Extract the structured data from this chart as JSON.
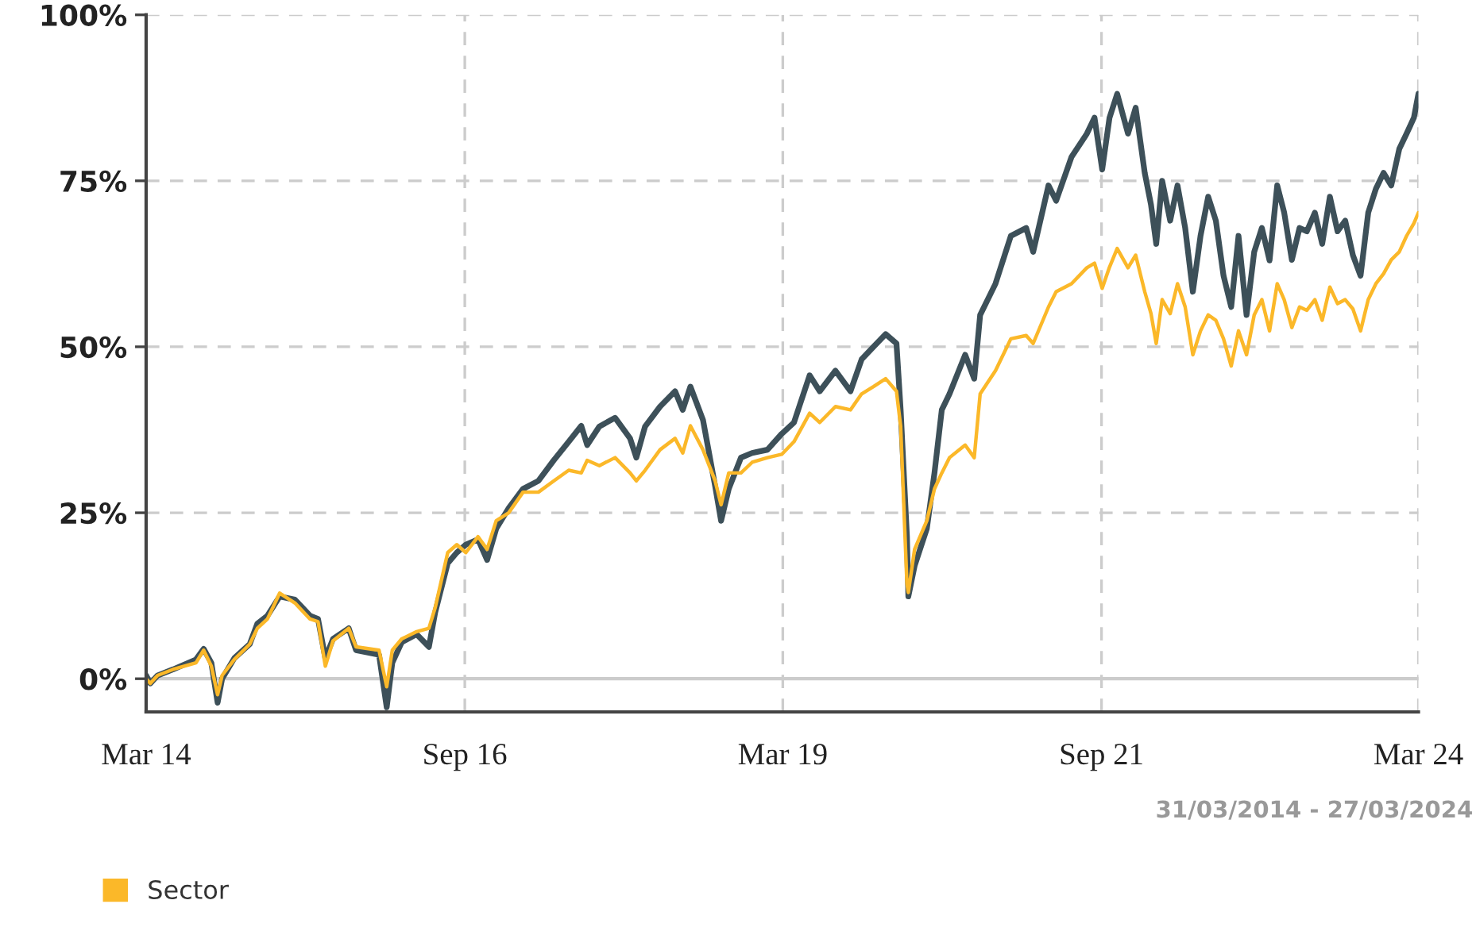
{
  "chart_data": {
    "type": "line",
    "x": [
      "2014-03-31",
      "2014-04-12",
      "2014-05-03",
      "2014-06-16",
      "2014-08-21",
      "2014-09-12",
      "2014-10-04",
      "2014-10-22",
      "2014-11-04",
      "2014-12-09",
      "2015-01-22",
      "2015-02-13",
      "2015-03-14",
      "2015-04-18",
      "2015-06-01",
      "2015-07-14",
      "2015-08-06",
      "2015-08-27",
      "2015-09-18",
      "2015-11-02",
      "2015-11-23",
      "2016-01-28",
      "2016-02-19",
      "2016-03-06",
      "2016-04-02",
      "2016-05-15",
      "2016-06-19",
      "2016-07-07",
      "2016-08-12",
      "2016-09-07",
      "2016-10-03",
      "2016-11-07",
      "2016-12-03",
      "2016-12-29",
      "2017-02-03",
      "2017-03-16",
      "2017-04-29",
      "2017-06-12",
      "2017-07-25",
      "2017-08-30",
      "2017-09-16",
      "2017-10-21",
      "2017-12-05",
      "2018-01-17",
      "2018-02-04",
      "2018-03-01",
      "2018-04-13",
      "2018-05-26",
      "2018-06-17",
      "2018-07-09",
      "2018-08-14",
      "2018-09-18",
      "2018-10-05",
      "2018-10-27",
      "2018-12-01",
      "2019-01-02",
      "2019-02-15",
      "2019-03-28",
      "2019-05-02",
      "2019-06-16",
      "2019-07-15",
      "2019-08-29",
      "2019-10-11",
      "2019-11-12",
      "2019-12-16",
      "2020-01-20",
      "2020-02-20",
      "2020-03-03",
      "2020-03-21",
      "2020-03-25",
      "2020-04-12",
      "2020-05-17",
      "2020-06-08",
      "2020-06-29",
      "2020-07-21",
      "2020-09-04",
      "2020-09-30",
      "2020-10-17",
      "2020-11-30",
      "2021-01-13",
      "2021-02-26",
      "2021-03-18",
      "2021-05-01",
      "2021-05-23",
      "2021-07-06",
      "2021-08-19",
      "2021-09-10",
      "2021-10-02",
      "2021-10-23",
      "2021-11-14",
      "2021-12-15",
      "2022-01-06",
      "2022-02-01",
      "2022-02-19",
      "2022-03-06",
      "2022-03-23",
      "2022-04-15",
      "2022-05-06",
      "2022-05-28",
      "2022-06-19",
      "2022-07-11",
      "2022-08-02",
      "2022-08-24",
      "2022-09-15",
      "2022-10-07",
      "2022-10-28",
      "2022-11-20",
      "2022-12-12",
      "2023-01-03",
      "2023-01-25",
      "2023-02-16",
      "2023-03-08",
      "2023-03-30",
      "2023-04-21",
      "2023-05-12",
      "2023-06-04",
      "2023-06-25",
      "2023-07-17",
      "2023-08-08",
      "2023-08-30",
      "2023-09-21",
      "2023-10-13",
      "2023-11-04",
      "2023-11-26",
      "2023-12-18",
      "2024-01-09",
      "2024-02-01",
      "2024-02-22",
      "2024-03-14",
      "2024-03-27"
    ],
    "series": [
      {
        "color": "#3d5059",
        "values": [
          0.5,
          -0.7,
          0.5,
          1.4,
          2.9,
          4.5,
          2.4,
          -3.6,
          0,
          3.1,
          5.2,
          8.3,
          9.5,
          12.4,
          11.9,
          9.5,
          9.0,
          3.1,
          6.0,
          7.6,
          4.3,
          3.6,
          -4.3,
          2.4,
          5.5,
          6.7,
          4.8,
          10.0,
          17.4,
          19.0,
          20.2,
          21.0,
          17.9,
          22.6,
          25.7,
          28.6,
          29.8,
          32.9,
          35.7,
          38.1,
          35.2,
          38.0,
          39.3,
          36.2,
          33.3,
          38.0,
          41.0,
          43.3,
          40.5,
          44.0,
          39.0,
          29.0,
          23.8,
          28.6,
          33.3,
          34.0,
          34.5,
          36.9,
          38.6,
          45.7,
          43.3,
          46.4,
          43.3,
          48.1,
          50.0,
          51.9,
          50.5,
          40.5,
          21.4,
          12.4,
          17.0,
          22.6,
          31.0,
          40.5,
          42.9,
          48.8,
          45.2,
          54.8,
          59.5,
          66.7,
          67.9,
          64.3,
          74.3,
          72.0,
          78.6,
          82.1,
          84.5,
          76.7,
          84.5,
          88.1,
          82.1,
          86.0,
          76.2,
          71.4,
          65.5,
          75.0,
          69.0,
          74.3,
          67.9,
          58.3,
          66.7,
          72.6,
          69.0,
          60.7,
          56.0,
          66.7,
          54.8,
          64.3,
          67.9,
          63.0,
          74.3,
          70.2,
          63.1,
          67.9,
          67.4,
          70.2,
          65.5,
          72.6,
          67.4,
          69.0,
          63.8,
          60.7,
          70.2,
          73.8,
          76.2,
          74.3,
          79.8,
          82.1,
          84.5,
          88.1
        ]
      },
      {
        "name": "Sector",
        "color": "#fbb829",
        "values": [
          0,
          -0.7,
          0.5,
          1.4,
          2.4,
          4.3,
          1.9,
          -2.4,
          0.5,
          2.9,
          5.2,
          7.6,
          9.0,
          12.9,
          11.4,
          9.0,
          8.6,
          1.9,
          5.7,
          7.6,
          4.8,
          4.3,
          -1.2,
          4.3,
          6.0,
          7.1,
          7.6,
          10.7,
          19.0,
          20.2,
          19.0,
          21.4,
          19.5,
          23.8,
          25.0,
          28.1,
          28.1,
          29.8,
          31.4,
          31.0,
          32.9,
          32.1,
          33.3,
          31.0,
          29.8,
          31.4,
          34.5,
          36.2,
          34.0,
          38.1,
          34.5,
          29.8,
          26.2,
          31.0,
          31.0,
          32.6,
          33.3,
          33.8,
          35.7,
          40.0,
          38.6,
          41.0,
          40.5,
          42.9,
          44.0,
          45.2,
          43.3,
          38.0,
          14.3,
          13.0,
          19.5,
          23.8,
          28.6,
          31.0,
          33.3,
          35.2,
          33.3,
          42.9,
          46.4,
          51.2,
          51.7,
          50.5,
          56.0,
          58.3,
          59.5,
          61.9,
          62.6,
          58.8,
          62.0,
          64.8,
          61.9,
          63.8,
          58.3,
          55.0,
          50.5,
          57.1,
          55.0,
          59.5,
          56.0,
          48.8,
          52.4,
          54.8,
          54.0,
          51.2,
          47.1,
          52.4,
          48.8,
          54.8,
          57.1,
          52.4,
          59.5,
          57.1,
          52.9,
          56.0,
          55.5,
          57.1,
          54.0,
          59.0,
          56.5,
          57.1,
          55.7,
          52.4,
          57.1,
          59.5,
          61.0,
          63.1,
          64.3,
          66.7,
          68.6,
          70.2
        ]
      }
    ],
    "xlim": [
      "2014-03-31",
      "2024-03-27"
    ],
    "xticks": [
      {
        "value": "2014-03-31",
        "label": "Mar 14"
      },
      {
        "value": "2016-09-30",
        "label": "Sep 16"
      },
      {
        "value": "2019-03-31",
        "label": "Mar 19"
      },
      {
        "value": "2021-09-30",
        "label": "Sep 21"
      },
      {
        "value": "2024-03-27",
        "label": "Mar 24"
      }
    ],
    "ylim": [
      -5,
      100
    ],
    "yticks": [
      {
        "value": 0,
        "label": "0%"
      },
      {
        "value": 25,
        "label": "25%"
      },
      {
        "value": 50,
        "label": "50%"
      },
      {
        "value": 75,
        "label": "75%"
      },
      {
        "value": 100,
        "label": "100%"
      }
    ],
    "ref_lines": [
      {
        "axis": "y",
        "value": 0,
        "color": "#cccccc"
      }
    ],
    "grid": true,
    "line_style": "solid",
    "legend": "bottom left",
    "annotations": [
      "31/03/2014 - 27/03/2024"
    ]
  }
}
